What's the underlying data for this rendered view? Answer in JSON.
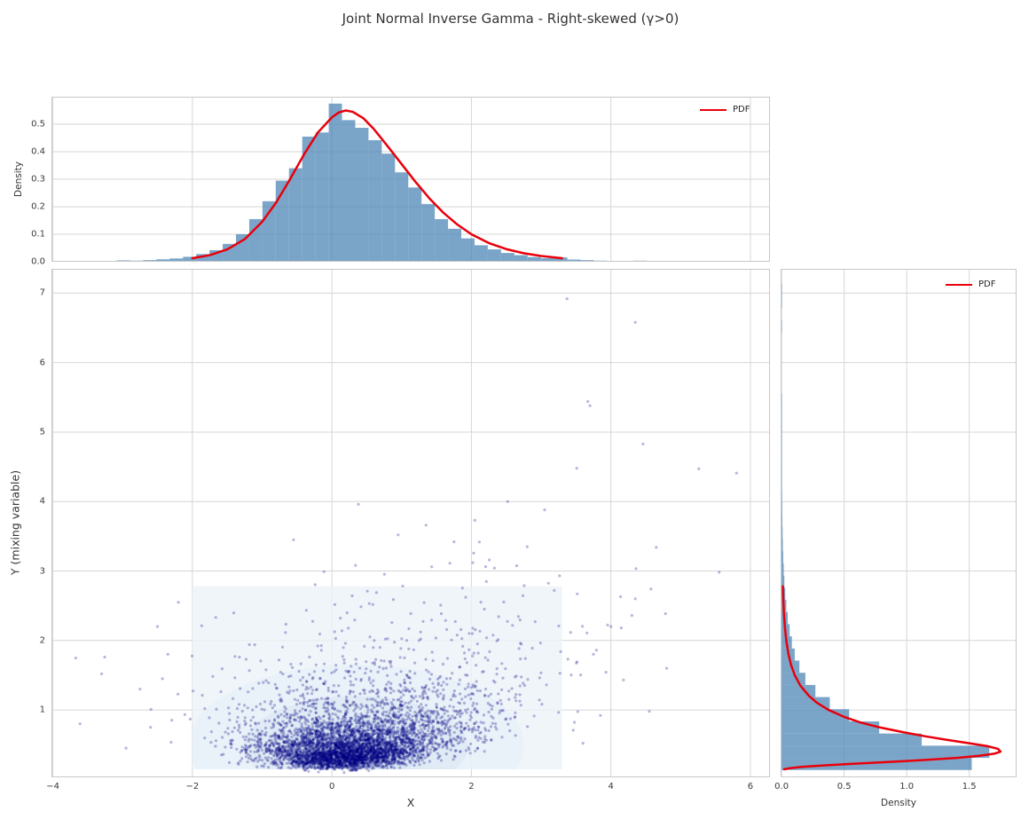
{
  "title": "Joint Normal Inverse Gamma - Right-skewed (γ>0)",
  "colors": {
    "bar_fill": "#4682B4",
    "bar_alpha": 0.72,
    "pdf_line": "#e8000b",
    "scatter_point": "#000080",
    "scatter_alpha": 0.28,
    "kde_fill": "#ecf3f9",
    "contour_fills": [
      "#e3edf7",
      "#d8e6f3",
      "#cfe0f0"
    ],
    "grid": "#d6d6d6",
    "spine": "#c8c8c8",
    "text": "#333333"
  },
  "chart_data": [
    {
      "id": "x_marginal_histogram",
      "type": "bar",
      "ylabel": "Density",
      "legend_label": "PDF",
      "xlim": [
        -4.02,
        6.28
      ],
      "ylim": [
        0,
        0.6
      ],
      "xticks": {
        "values": [
          -4,
          -2,
          0,
          2,
          4,
          6
        ]
      },
      "yticks": {
        "values": [
          0,
          0.1,
          0.2,
          0.3,
          0.4,
          0.5
        ],
        "labels": [
          "0.0",
          "0.1",
          "0.2",
          "0.3",
          "0.4",
          "0.5"
        ]
      },
      "hist": {
        "bin_width": 0.19,
        "centers": [
          -3.37,
          -3.18,
          -2.99,
          -2.8,
          -2.61,
          -2.42,
          -2.23,
          -2.04,
          -1.85,
          -1.66,
          -1.47,
          -1.28,
          -1.09,
          -0.9,
          -0.71,
          -0.52,
          -0.33,
          -0.14,
          0.05,
          0.24,
          0.43,
          0.62,
          0.81,
          1.0,
          1.19,
          1.38,
          1.57,
          1.76,
          1.95,
          2.14,
          2.33,
          2.52,
          2.71,
          2.9,
          3.09,
          3.28,
          3.47,
          3.66,
          3.85,
          4.04,
          4.23,
          4.42
        ],
        "densities": [
          0.003,
          0.003,
          0.005,
          0.004,
          0.006,
          0.009,
          0.012,
          0.018,
          0.028,
          0.042,
          0.065,
          0.1,
          0.155,
          0.22,
          0.295,
          0.34,
          0.455,
          0.47,
          0.575,
          0.515,
          0.487,
          0.442,
          0.393,
          0.325,
          0.27,
          0.21,
          0.155,
          0.12,
          0.085,
          0.06,
          0.045,
          0.032,
          0.024,
          0.017,
          0.013,
          0.016,
          0.008,
          0.006,
          0.004,
          0.003,
          0.002,
          0.004
        ]
      },
      "pdf": {
        "x": [
          -2.0,
          -1.75,
          -1.5,
          -1.25,
          -1.0,
          -0.8,
          -0.6,
          -0.4,
          -0.2,
          0,
          0.1,
          0.2,
          0.3,
          0.45,
          0.6,
          0.8,
          1.0,
          1.2,
          1.4,
          1.6,
          1.8,
          2.0,
          2.25,
          2.5,
          2.75,
          3.0,
          3.3
        ],
        "y": [
          0.013,
          0.024,
          0.045,
          0.082,
          0.145,
          0.215,
          0.3,
          0.39,
          0.47,
          0.525,
          0.543,
          0.55,
          0.545,
          0.522,
          0.483,
          0.42,
          0.355,
          0.29,
          0.23,
          0.178,
          0.135,
          0.1,
          0.068,
          0.046,
          0.031,
          0.021,
          0.013
        ]
      }
    },
    {
      "id": "joint_scatter",
      "type": "scatter",
      "xlabel": "X",
      "ylabel": "Y (mixing variable)",
      "xlim": [
        -4.02,
        6.28
      ],
      "ylim": [
        0.03,
        7.35
      ],
      "xticks": {
        "values": [
          -4,
          -2,
          0,
          2,
          4,
          6
        ],
        "labels": [
          "−4",
          "−2",
          "0",
          "2",
          "4",
          "6"
        ]
      },
      "yticks": {
        "values": [
          1,
          2,
          3,
          4,
          5,
          6,
          7
        ],
        "labels": [
          "1",
          "2",
          "3",
          "4",
          "5",
          "6",
          "7"
        ]
      },
      "kde_region": {
        "x": [
          -2.0,
          3.3
        ],
        "y": [
          0.145,
          2.78
        ]
      },
      "contours": [
        {
          "cx": 0.35,
          "cy": 0.5,
          "rx": 2.4,
          "ry": 1.15
        },
        {
          "cx": 0.35,
          "cy": 0.48,
          "rx": 1.6,
          "ry": 0.72
        },
        {
          "cx": 0.35,
          "cy": 0.45,
          "rx": 1.0,
          "ry": 0.42
        }
      ],
      "cloud": {
        "n": 4800,
        "seed": 11,
        "mu": -0.05,
        "gamma": 0.65,
        "sigma": 1.0,
        "ig_shape": 3.2,
        "ig_scale": 1.4,
        "y_clip": 3.6,
        "point_radius": 1.6
      },
      "outliers": [
        [
          3.37,
          6.92
        ],
        [
          4.35,
          6.58
        ],
        [
          3.67,
          5.44
        ],
        [
          3.7,
          5.38
        ],
        [
          4.46,
          4.83
        ],
        [
          3.51,
          4.48
        ],
        [
          5.26,
          4.47
        ],
        [
          5.8,
          4.41
        ],
        [
          2.52,
          4.0
        ],
        [
          0.38,
          3.96
        ],
        [
          3.05,
          3.88
        ],
        [
          2.05,
          3.73
        ],
        [
          1.35,
          3.66
        ],
        [
          0.95,
          3.52
        ],
        [
          -0.55,
          3.45
        ],
        [
          1.75,
          3.42
        ],
        [
          2.8,
          3.35
        ],
        [
          -3.61,
          0.8
        ],
        [
          -3.3,
          1.52
        ],
        [
          -2.95,
          0.45
        ],
        [
          -2.6,
          0.75
        ],
        [
          -2.75,
          1.3
        ],
        [
          -2.5,
          2.2
        ],
        [
          -2.2,
          2.55
        ],
        [
          -2.35,
          1.8
        ],
        [
          3.6,
          0.52
        ],
        [
          3.85,
          0.92
        ],
        [
          4.18,
          1.43
        ],
        [
          4.0,
          2.2
        ],
        [
          4.55,
          0.98
        ],
        [
          4.35,
          2.6
        ],
        [
          3.75,
          1.8
        ],
        [
          4.8,
          1.6
        ]
      ]
    },
    {
      "id": "y_marginal_histogram",
      "type": "bar",
      "xlabel": "Density",
      "legend_label": "PDF",
      "xlim": [
        -0.008,
        1.878
      ],
      "ylim": [
        0.03,
        7.35
      ],
      "xticks": {
        "values": [
          0,
          0.5,
          1.0,
          1.5
        ],
        "labels": [
          "0.0",
          "0.5",
          "1.0",
          "1.5"
        ]
      },
      "yticks": {
        "values": [
          1,
          2,
          3,
          4,
          5,
          6,
          7
        ]
      },
      "hist": {
        "bin_width": 0.175,
        "centers": [
          0.2225,
          0.3975,
          0.5725,
          0.7475,
          0.9225,
          1.0975,
          1.2725,
          1.4475,
          1.6225,
          1.7975,
          1.9725,
          2.1475,
          2.3225,
          2.4975,
          2.6725,
          2.8475,
          3.0225,
          3.1975,
          3.3725,
          3.5475,
          3.7225,
          3.8975,
          4.0725,
          4.2475,
          4.4225,
          4.5975,
          4.7725,
          4.9475,
          5.1225,
          5.2975,
          5.4725,
          5.6475,
          5.8225,
          5.9975,
          6.1725,
          6.3475,
          6.5225,
          6.6975,
          6.8725,
          7.0475
        ],
        "densities": [
          1.52,
          1.66,
          1.12,
          0.78,
          0.54,
          0.385,
          0.27,
          0.19,
          0.142,
          0.105,
          0.082,
          0.064,
          0.049,
          0.038,
          0.029,
          0.022,
          0.017,
          0.013,
          0.01,
          0.008,
          0.006,
          0.005,
          0.004,
          0.003,
          0.003,
          0.002,
          0.002,
          0.001,
          0.001,
          0.001,
          0.003,
          0,
          0,
          0,
          0,
          0,
          0.001,
          0,
          0.001,
          0.001
        ]
      },
      "pdf": {
        "y": [
          0.145,
          0.16,
          0.18,
          0.2,
          0.22,
          0.25,
          0.28,
          0.31,
          0.34,
          0.37,
          0.4,
          0.44,
          0.48,
          0.52,
          0.57,
          0.62,
          0.68,
          0.75,
          0.82,
          0.9,
          1.0,
          1.1,
          1.2,
          1.35,
          1.5,
          1.65,
          1.8,
          2.0,
          2.2,
          2.4,
          2.6,
          2.78
        ],
        "density": [
          0.02,
          0.06,
          0.16,
          0.32,
          0.52,
          0.85,
          1.15,
          1.4,
          1.58,
          1.7,
          1.75,
          1.73,
          1.64,
          1.5,
          1.32,
          1.15,
          0.97,
          0.78,
          0.63,
          0.5,
          0.375,
          0.285,
          0.22,
          0.15,
          0.105,
          0.075,
          0.055,
          0.037,
          0.026,
          0.018,
          0.013,
          0.01
        ]
      }
    }
  ]
}
